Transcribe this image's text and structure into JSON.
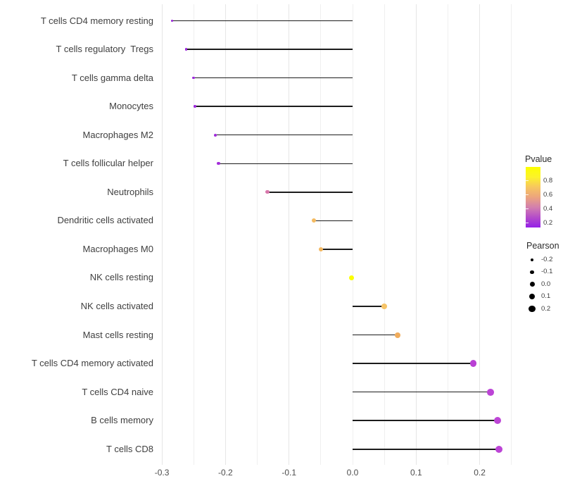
{
  "chart_data": {
    "type": "scatter",
    "subtype": "lollipop",
    "title": "",
    "xlabel": "",
    "ylabel": "",
    "xlim": [
      -0.306,
      0.265
    ],
    "x_major_tick_labels": [
      "-0.3",
      "-0.2",
      "-0.1",
      "0.0",
      "0.1",
      "0.2"
    ],
    "x_major_tick_values": [
      -0.3,
      -0.2,
      -0.1,
      0.0,
      0.1,
      0.2
    ],
    "grid_minor_step": 0.05,
    "grid": "vertical-only",
    "legend_position": "right",
    "rows": [
      {
        "label": "T cells CD4 memory resting",
        "pearson": -0.284,
        "pvalue": 0.2,
        "color": "#9a22da"
      },
      {
        "label": "T cells regulatory  Tregs",
        "pearson": -0.262,
        "pvalue": 0.2,
        "color": "#9c24dc"
      },
      {
        "label": "T cells gamma delta",
        "pearson": -0.25,
        "pvalue": 0.2,
        "color": "#9d26dd"
      },
      {
        "label": "Monocytes",
        "pearson": -0.248,
        "pvalue": 0.2,
        "color": "#9d26dd"
      },
      {
        "label": "Macrophages M2",
        "pearson": -0.216,
        "pvalue": 0.22,
        "color": "#a22cdb"
      },
      {
        "label": "T cells follicular helper",
        "pearson": -0.211,
        "pvalue": 0.22,
        "color": "#a32ed9"
      },
      {
        "label": "Neutrophils",
        "pearson": -0.134,
        "pvalue": 0.5,
        "color": "#d877ab"
      },
      {
        "label": "Dendritic cells activated",
        "pearson": -0.061,
        "pvalue": 0.78,
        "color": "#f4bb62"
      },
      {
        "label": "Macrophages M0",
        "pearson": -0.05,
        "pvalue": 0.76,
        "color": "#f3b760"
      },
      {
        "label": "NK cells resting",
        "pearson": -0.002,
        "pvalue": 0.98,
        "color": "#fbfe00"
      },
      {
        "label": "NK cells activated",
        "pearson": 0.05,
        "pvalue": 0.82,
        "color": "#f6c468"
      },
      {
        "label": "Mast cells resting",
        "pearson": 0.071,
        "pvalue": 0.72,
        "color": "#f0ac5c"
      },
      {
        "label": "T cells CD4 memory activated",
        "pearson": 0.19,
        "pvalue": 0.3,
        "color": "#b940d4"
      },
      {
        "label": "T cells CD4 naive",
        "pearson": 0.217,
        "pvalue": 0.3,
        "color": "#bc44d6"
      },
      {
        "label": "B cells memory",
        "pearson": 0.228,
        "pvalue": 0.3,
        "color": "#bd45d6"
      },
      {
        "label": "T cells CD8",
        "pearson": 0.23,
        "pvalue": 0.3,
        "color": "#bc44d6"
      }
    ],
    "pvalue_legend": {
      "title": "Pvalue",
      "tick_labels": [
        "0.8",
        "0.6",
        "0.4",
        "0.2"
      ],
      "tick_values": [
        0.8,
        0.6,
        0.4,
        0.2
      ],
      "range": [
        0.135,
        1.0
      ],
      "gradient_bottom_to_top": [
        "#9420e8",
        "#b44cc9",
        "#d27fae",
        "#eca47e",
        "#f7c65f",
        "#fcf32a",
        "#fcff00"
      ]
    },
    "pearson_legend": {
      "title": "Pearson",
      "tick_labels": [
        "-0.2",
        "-0.1",
        "0.0",
        "0.1",
        "0.2"
      ],
      "tick_values": [
        -0.2,
        -0.1,
        0.0,
        0.1,
        0.2
      ],
      "dot_color": "#000000"
    }
  },
  "colors": {
    "background": "#ffffff",
    "stem": "#1c1c1c",
    "grid_major": "#e6e6e6",
    "grid_minor": "#efefef",
    "axis_text": "#4d4d4d",
    "category_text": "#3f3f3f"
  }
}
